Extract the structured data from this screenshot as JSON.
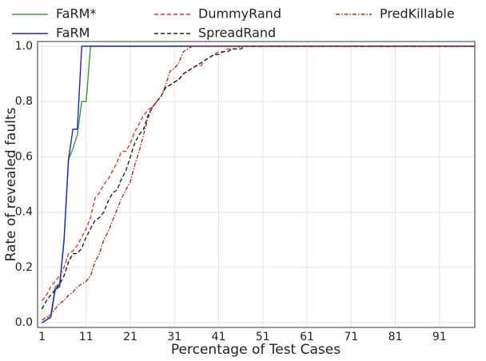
{
  "chart_data": {
    "type": "line",
    "x_label": "Percentage of Test Cases",
    "y_label": "Rate of revealed faults",
    "x": [
      1,
      2,
      3,
      4,
      5,
      6,
      7,
      8,
      9,
      10,
      11,
      12,
      13,
      14,
      15,
      16,
      17,
      18,
      19,
      20,
      21,
      22,
      23,
      24,
      25,
      26,
      27,
      28,
      29,
      30,
      31,
      32,
      33,
      34,
      35,
      36,
      37,
      38,
      39,
      40,
      41,
      42,
      43,
      44,
      45,
      46,
      47,
      48,
      49,
      50,
      100
    ],
    "xlim": [
      0,
      99
    ],
    "xticks": [
      1,
      11,
      21,
      31,
      41,
      51,
      61,
      71,
      81,
      91
    ],
    "ylim": [
      -0.017,
      1.017
    ],
    "yticks": [
      {
        "value": 0,
        "label": "0.0"
      },
      0.2,
      0.4,
      0.6,
      0.8,
      {
        "value": 1,
        "label": "1.0"
      }
    ],
    "grid": true,
    "legend": "top outside",
    "series": [
      {
        "name": "FaRM*",
        "color": "#3a9a3a",
        "dash": "solid",
        "values": [
          0,
          0.01,
          0.03,
          0.13,
          0.14,
          0.3,
          0.59,
          0.63,
          0.68,
          0.8,
          0.8,
          1,
          1,
          1,
          1,
          1,
          1,
          1,
          1,
          1,
          1,
          1,
          1,
          1,
          1,
          1,
          1,
          1,
          1,
          1,
          1,
          1,
          1,
          1,
          1,
          1,
          1,
          1,
          1,
          1,
          1,
          1,
          1,
          1,
          1,
          1,
          1,
          1,
          1,
          1,
          1
        ]
      },
      {
        "name": "FaRM",
        "color": "#2424c8",
        "dash": "solid",
        "values": [
          0,
          0.01,
          0.02,
          0.12,
          0.13,
          0.3,
          0.59,
          0.7,
          0.7,
          1,
          1,
          1,
          1,
          1,
          1,
          1,
          1,
          1,
          1,
          1,
          1,
          1,
          1,
          1,
          1,
          1,
          1,
          1,
          1,
          1,
          1,
          1,
          1,
          1,
          1,
          1,
          1,
          1,
          1,
          1,
          1,
          1,
          1,
          1,
          1,
          1,
          1,
          1,
          1,
          1,
          1
        ]
      },
      {
        "name": "DummyRand",
        "color": "#e8352a",
        "dash": "dashed",
        "values": [
          0.08,
          0.1,
          0.13,
          0.15,
          0.17,
          0.2,
          0.25,
          0.26,
          0.28,
          0.31,
          0.34,
          0.38,
          0.45,
          0.47,
          0.5,
          0.52,
          0.55,
          0.58,
          0.62,
          0.62,
          0.65,
          0.69,
          0.72,
          0.75,
          0.77,
          0.78,
          0.8,
          0.82,
          0.85,
          0.86,
          0.87,
          0.88,
          0.9,
          0.91,
          0.92,
          0.93,
          0.93,
          0.95,
          0.96,
          0.97,
          0.98,
          0.98,
          0.99,
          0.99,
          0.99,
          1,
          1,
          1,
          1,
          1,
          1
        ]
      },
      {
        "name": "SpreadRand",
        "color": "#222222",
        "dash": "dashed",
        "values": [
          0.05,
          0.08,
          0.1,
          0.12,
          0.14,
          0.17,
          0.22,
          0.25,
          0.25,
          0.27,
          0.31,
          0.34,
          0.37,
          0.38,
          0.4,
          0.44,
          0.47,
          0.48,
          0.52,
          0.55,
          0.6,
          0.65,
          0.68,
          0.7,
          0.75,
          0.78,
          0.8,
          0.82,
          0.85,
          0.86,
          0.87,
          0.88,
          0.9,
          0.91,
          0.92,
          0.93,
          0.94,
          0.95,
          0.96,
          0.97,
          0.97,
          0.98,
          0.98,
          0.99,
          0.99,
          0.99,
          1,
          1,
          1,
          1,
          1
        ]
      },
      {
        "name": "PredKillable",
        "color": "#a8321e",
        "dash": "dashdot",
        "values": [
          0.01,
          0.02,
          0.03,
          0.05,
          0.07,
          0.08,
          0.1,
          0.11,
          0.13,
          0.14,
          0.15,
          0.17,
          0.22,
          0.25,
          0.3,
          0.33,
          0.37,
          0.41,
          0.45,
          0.48,
          0.51,
          0.57,
          0.62,
          0.68,
          0.74,
          0.78,
          0.8,
          0.82,
          0.86,
          0.91,
          0.92,
          0.94,
          0.98,
          0.99,
          1,
          1,
          1,
          1,
          1,
          1,
          1,
          1,
          1,
          1,
          1,
          1,
          1,
          1,
          1,
          1,
          1
        ]
      }
    ]
  }
}
